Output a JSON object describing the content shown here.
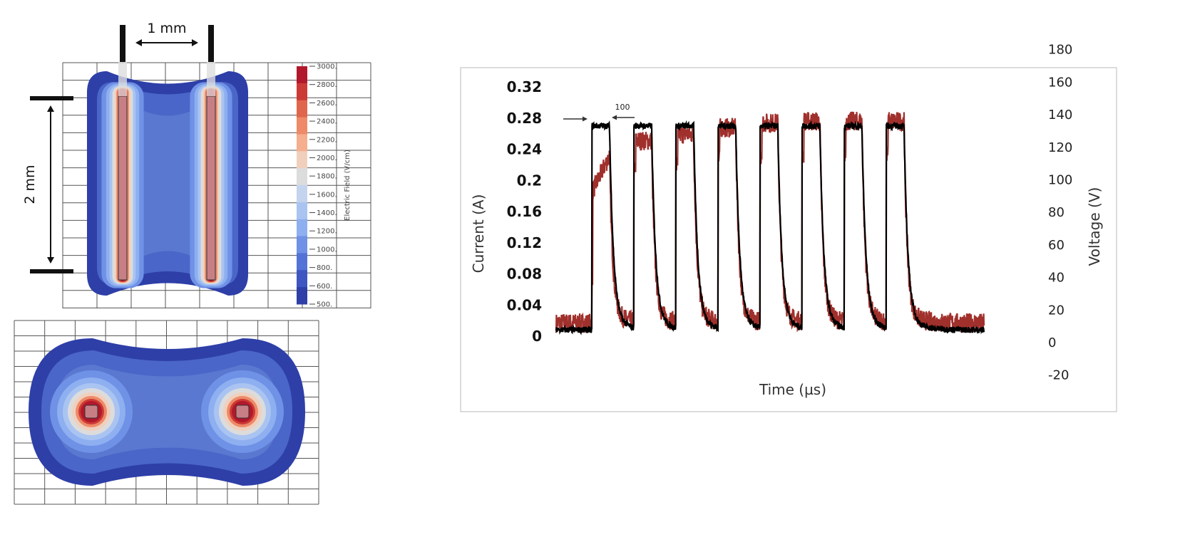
{
  "simulation": {
    "dimension_width": "1 mm",
    "dimension_height": "2 mm",
    "colorbar_title": "Electric Field (V/cm)",
    "colorbar_labels": [
      "3000.",
      "2800.",
      "2600.",
      "2400.",
      "2200.",
      "2000.",
      "1800.",
      "1600.",
      "1400.",
      "1200.",
      "1000.",
      "800.",
      "600.",
      "500."
    ],
    "colorbar_colors": [
      "#b2182b",
      "#cc3a35",
      "#e0654d",
      "#ee8a68",
      "#f5ae8e",
      "#f0d0bd",
      "#dcdcdc",
      "#c5d4ee",
      "#aac4f2",
      "#8eaff0",
      "#6f91e6",
      "#5473d6",
      "#3d56c2",
      "#2e3fa8"
    ]
  },
  "chart_data": {
    "type": "line",
    "xlabel": "Time (µs)",
    "ylabel": "Current (A)",
    "y2label": "Voltage (V)",
    "ylim": [
      0,
      0.32
    ],
    "y2lim": [
      -20,
      180
    ],
    "yticks": [
      "0.32",
      "0.28",
      "0.24",
      "0.2",
      "0.16",
      "0.12",
      "0.08",
      "0.04",
      "0"
    ],
    "y2ticks": [
      "180",
      "160",
      "140",
      "120",
      "100",
      "80",
      "60",
      "40",
      "20",
      "0",
      "-20"
    ],
    "annotation": "100",
    "annotation_note": "pulse width",
    "xlim_us": [
      0,
      2400
    ],
    "pulses": {
      "count": 8,
      "first_start_us": 200,
      "period_us": 236,
      "width_us": 100
    },
    "series": [
      {
        "name": "Current",
        "axis": "left",
        "color": "#000000",
        "baseline": 0.008,
        "plateau": [
          0.27,
          0.27,
          0.27,
          0.27,
          0.27,
          0.27,
          0.27,
          0.27
        ],
        "noise": 0.004
      },
      {
        "name": "Voltage",
        "axis": "right",
        "color": "#a0302c",
        "baseline": 12,
        "plateau": [
          115,
          124,
          128,
          132,
          135,
          136,
          136,
          136
        ],
        "noise": 6
      }
    ]
  }
}
